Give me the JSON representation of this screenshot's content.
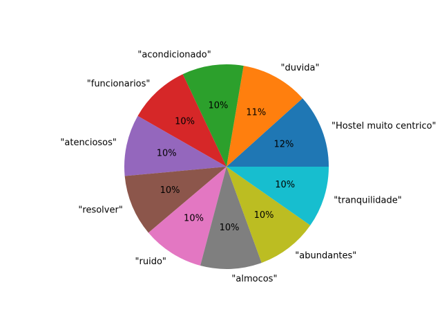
{
  "chart_data": {
    "type": "pie",
    "title": "",
    "start_angle_deg": 0,
    "direction": "counterclockwise",
    "slices": [
      {
        "label": "\"Hostel muito centrico\"",
        "value": 12,
        "pct_text": "12%",
        "color": "#1f77b4"
      },
      {
        "label": "\"duvida\"",
        "value": 11,
        "pct_text": "11%",
        "color": "#ff7f0e"
      },
      {
        "label": "\"acondicionado\"",
        "value": 10,
        "pct_text": "10%",
        "color": "#2ca02c"
      },
      {
        "label": "\"funcionarios\"",
        "value": 10,
        "pct_text": "10%",
        "color": "#d62728"
      },
      {
        "label": "\"atenciosos\"",
        "value": 10,
        "pct_text": "10%",
        "color": "#9467bd"
      },
      {
        "label": "\"resolver\"",
        "value": 10,
        "pct_text": "10%",
        "color": "#8c564b"
      },
      {
        "label": "\"ruido\"",
        "value": 10,
        "pct_text": "10%",
        "color": "#e377c2"
      },
      {
        "label": "\"almocos\"",
        "value": 10,
        "pct_text": "10%",
        "color": "#7f7f7f"
      },
      {
        "label": "\"abundantes\"",
        "value": 10,
        "pct_text": "10%",
        "color": "#bcbd22"
      },
      {
        "label": "\"tranquilidade\"",
        "value": 10,
        "pct_text": "10%",
        "color": "#17becf"
      }
    ]
  }
}
